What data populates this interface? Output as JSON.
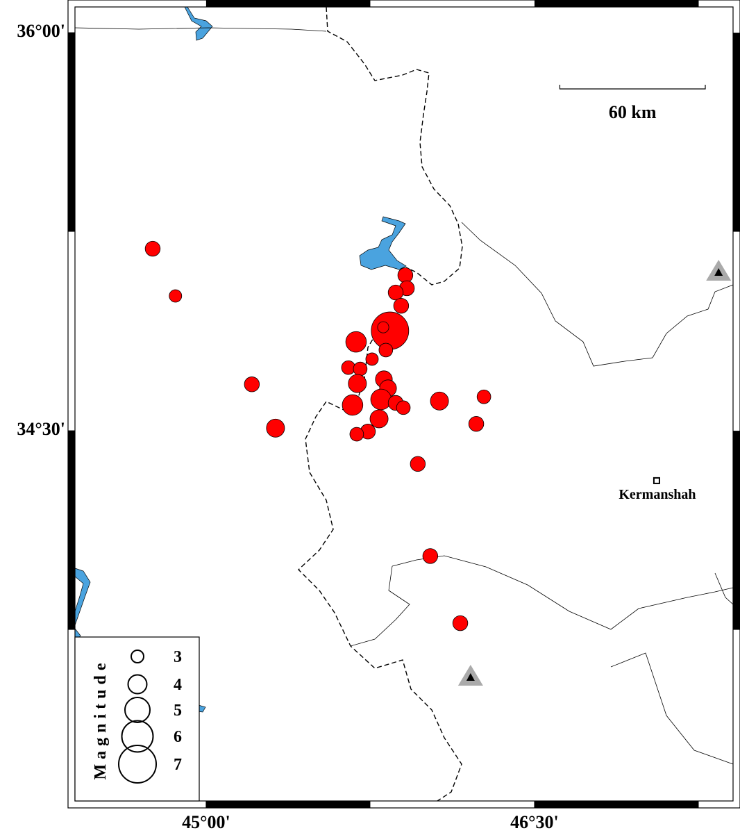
{
  "chart_data": {
    "type": "map",
    "xlim": [
      44.401,
      47.407
    ],
    "ylim": [
      33.105,
      36.097
    ],
    "xticks": [
      {
        "value": 45,
        "label": "45°00'"
      },
      {
        "value": 46.5,
        "label": "46°30'"
      }
    ],
    "yticks": [
      {
        "value": 36,
        "label": "36°00'"
      },
      {
        "value": 34.5,
        "label": "34°30'"
      }
    ],
    "color": "#ff0000",
    "events": {
      "lon": [
        44.756,
        44.86,
        45.209,
        45.317,
        45.685,
        45.84,
        45.809,
        45.91,
        45.917,
        45.866,
        45.891,
        45.821,
        45.758,
        45.65,
        45.704,
        45.691,
        45.812,
        45.831,
        45.669,
        45.799,
        45.866,
        45.901,
        45.79,
        45.739,
        45.688,
        46.066,
        46.269,
        46.234,
        45.967,
        46.024,
        46.161
      ],
      "lat": [
        35.186,
        35.008,
        34.675,
        34.51,
        34.835,
        34.877,
        34.89,
        35.086,
        35.037,
        35.021,
        34.971,
        34.804,
        34.77,
        34.738,
        34.733,
        34.678,
        34.694,
        34.66,
        34.597,
        34.618,
        34.605,
        34.587,
        34.545,
        34.497,
        34.487,
        34.612,
        34.628,
        34.526,
        34.375,
        34.028,
        33.775
      ],
      "magnitude": [
        3.4,
        3.0,
        3.4,
        3.9,
        4.3,
        7.0,
        2.8,
        3.4,
        3.4,
        3.4,
        3.4,
        3.2,
        3.0,
        3.2,
        3.2,
        3.9,
        3.7,
        3.7,
        4.3,
        4.3,
        3.4,
        3.2,
        3.9,
        3.4,
        3.2,
        3.9,
        3.2,
        3.4,
        3.4,
        3.4,
        3.4
      ]
    },
    "stations": {
      "lon": [
        47.341,
        46.208
      ],
      "lat": [
        35.097,
        33.571
      ]
    },
    "cities": [
      {
        "name": "Kermanshah",
        "lon": 47.058,
        "lat": 34.312
      }
    ],
    "scale_bar": {
      "value": 60,
      "label": "60 km"
    },
    "legend": {
      "title": "Magnitude",
      "sizes": [
        3,
        4,
        5,
        6,
        7
      ]
    }
  }
}
